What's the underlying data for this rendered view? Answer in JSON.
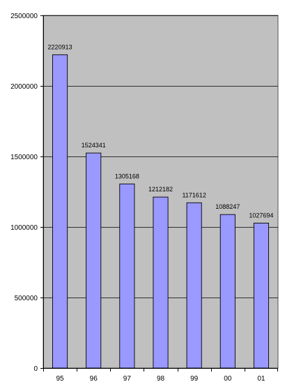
{
  "chart_data": {
    "type": "bar",
    "title": "",
    "xlabel": "",
    "ylabel": "",
    "categories": [
      "95",
      "96",
      "97",
      "98",
      "99",
      "00",
      "01"
    ],
    "values": [
      2220913,
      1524341,
      1305168,
      1212182,
      1171612,
      1088247,
      1027694
    ],
    "data_labels": [
      "2220913",
      "1524341",
      "1305168",
      "1212182",
      "1171612",
      "1088247",
      "1027694"
    ],
    "ylim": [
      0,
      2500000
    ],
    "yticks": [
      0,
      500000,
      1000000,
      1500000,
      2000000,
      2500000
    ],
    "ytick_labels": [
      "0",
      "500000",
      "1000000",
      "1500000",
      "2000000",
      "2500000"
    ],
    "grid": true,
    "legend": "none",
    "colors": {
      "plot_background": "#c0c0c0",
      "bar_fill": "#9999ff",
      "bar_stroke": "#000000",
      "grid": "#000000",
      "axis": "#000000"
    }
  }
}
